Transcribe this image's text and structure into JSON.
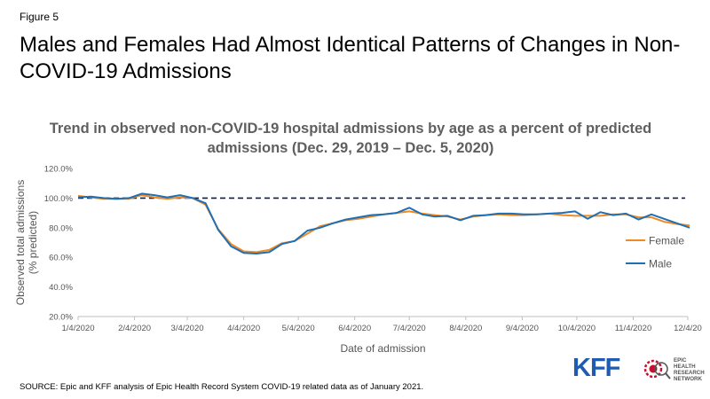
{
  "header": {
    "figure_label": "Figure 5",
    "headline": "Males and Females Had Almost Identical Patterns of Changes in Non-COVID-19 Admissions"
  },
  "footer": {
    "source": "SOURCE: Epic and KFF analysis of Epic Health Record System COVID-19 related data as of January 2021."
  },
  "logos": {
    "kff": "KFF",
    "epic_lines": [
      "EPIC",
      "HEALTH",
      "RESEARCH",
      "NETWORK"
    ]
  },
  "colors": {
    "female": "#F08A24",
    "male": "#1F6FB4",
    "reference": "#0A1E5A"
  },
  "chart_data": {
    "type": "line",
    "title": "Trend in observed non-COVID-19 hospital admissions by age as a percent of predicted admissions (Dec. 29, 2019 – Dec. 5, 2020)",
    "xlabel": "Date of admission",
    "ylabel": "Observed total admissions (% predicted)",
    "ylim": [
      20,
      120
    ],
    "y_ticks": [
      "20.0%",
      "40.0%",
      "60.0%",
      "80.0%",
      "100.0%",
      "120.0%"
    ],
    "x_ticks": [
      "1/4/2020",
      "2/4/2020",
      "3/4/2020",
      "4/4/2020",
      "5/4/2020",
      "6/4/2020",
      "7/4/2020",
      "8/4/2020",
      "9/4/2020",
      "10/4/2020",
      "11/4/2020",
      "12/4/20"
    ],
    "x_dates": [
      "2020-01-04",
      "2020-01-11",
      "2020-01-18",
      "2020-01-25",
      "2020-02-01",
      "2020-02-08",
      "2020-02-15",
      "2020-02-22",
      "2020-02-29",
      "2020-03-07",
      "2020-03-14",
      "2020-03-21",
      "2020-03-28",
      "2020-04-04",
      "2020-04-11",
      "2020-04-18",
      "2020-04-25",
      "2020-05-02",
      "2020-05-09",
      "2020-05-16",
      "2020-05-23",
      "2020-05-30",
      "2020-06-06",
      "2020-06-13",
      "2020-06-20",
      "2020-06-27",
      "2020-07-04",
      "2020-07-11",
      "2020-07-18",
      "2020-07-25",
      "2020-08-01",
      "2020-08-08",
      "2020-08-15",
      "2020-08-22",
      "2020-08-29",
      "2020-09-05",
      "2020-09-12",
      "2020-09-19",
      "2020-09-26",
      "2020-10-03",
      "2020-10-10",
      "2020-10-17",
      "2020-10-24",
      "2020-10-31",
      "2020-11-07",
      "2020-11-14",
      "2020-11-21",
      "2020-11-28",
      "2020-12-05"
    ],
    "reference_line": 100,
    "legend_position": "right",
    "grid": false,
    "series": [
      {
        "name": "Female",
        "color": "#F08A24",
        "values": [
          101.5,
          100.5,
          99.5,
          99.5,
          99.5,
          102,
          100.5,
          99.5,
          100.5,
          100,
          95.5,
          79,
          69,
          64,
          63.5,
          65,
          69.5,
          71,
          76,
          81,
          83,
          85,
          86,
          87.5,
          89,
          90,
          91,
          89.5,
          88.5,
          87.5,
          85.5,
          87.5,
          88.5,
          89,
          88.5,
          88.5,
          89,
          89.5,
          88.5,
          88,
          88,
          88,
          89,
          89,
          87,
          87,
          84,
          82.5,
          81.5
        ]
      },
      {
        "name": "Male",
        "color": "#1F6FB4",
        "values": [
          100.5,
          101,
          100,
          99.5,
          100,
          103,
          102,
          100.5,
          102,
          100,
          96.5,
          78.5,
          67.5,
          63,
          62.5,
          63.5,
          69,
          71,
          78,
          80,
          83,
          85.5,
          87,
          88.5,
          89,
          90,
          93.5,
          89,
          87.5,
          88,
          85,
          88,
          88.5,
          89.5,
          89.5,
          89,
          89,
          89.5,
          90,
          91,
          86,
          90.5,
          88.5,
          89.5,
          85.5,
          89,
          86,
          83,
          80
        ]
      }
    ]
  }
}
